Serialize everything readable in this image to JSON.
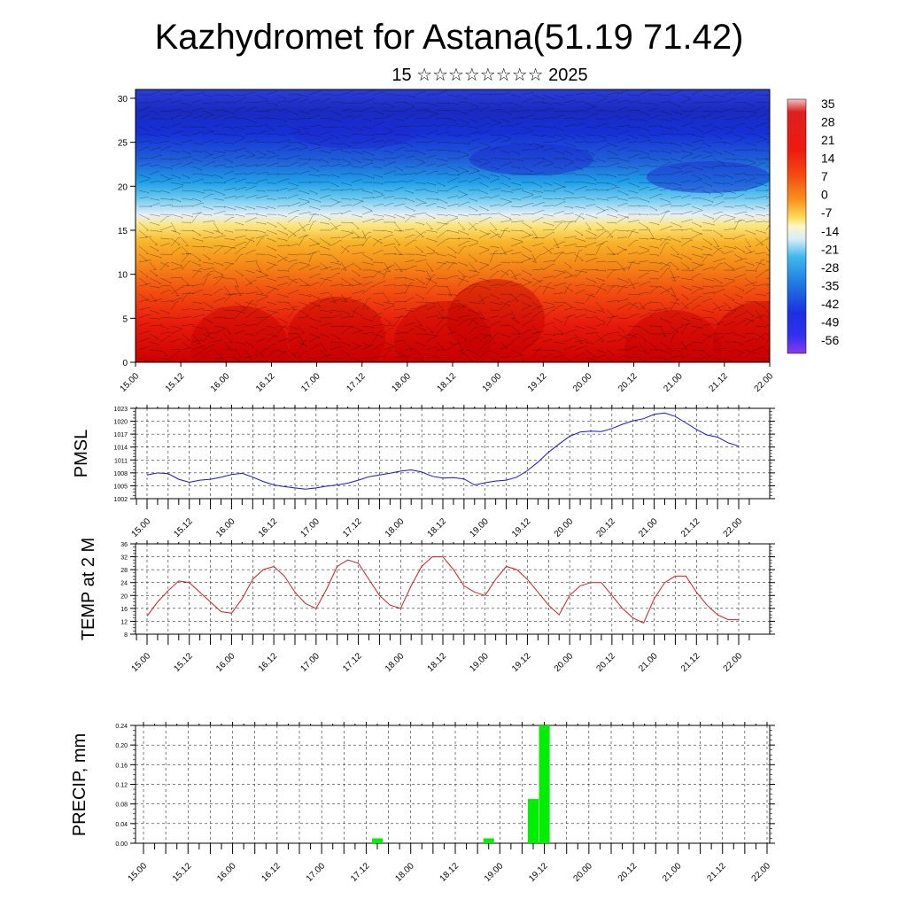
{
  "header": {
    "title": "Kazhydromet for Astana(51.19 71.42)",
    "subtitle": "15 ☆☆☆☆☆☆☆☆ 2025"
  },
  "x_ticks": [
    "15.00",
    "15.12",
    "16.00",
    "16.12",
    "17.00",
    "17.12",
    "18.00",
    "18.12",
    "19.00",
    "19.12",
    "20.00",
    "20.12",
    "21.00",
    "21.12",
    "22.00"
  ],
  "colors": {
    "pmsl_line": "#1515d6",
    "temp_line": "#d81b1b",
    "precip_bar": "#00ee00"
  },
  "chart_data": [
    {
      "type": "heatmap",
      "title": "Kazhydromet for Astana(51.19 71.42)",
      "subtitle": "15 ☆☆☆☆☆☆☆☆ 2025",
      "y_ticks": [
        "0",
        "5",
        "10",
        "15",
        "20",
        "25",
        "30"
      ],
      "ylim": [
        0,
        31
      ],
      "colorbar_labels": [
        "35",
        "28",
        "21",
        "14",
        "7",
        "0",
        "-7",
        "-14",
        "-21",
        "-28",
        "-35",
        "-42",
        "-49",
        "-56"
      ],
      "note_colormap": "temperature shaded from red (warm, near 0) through yellow (~15) to blue (cold, above 20), overlaid with wind barbs"
    },
    {
      "type": "line",
      "ylabel": "PMSL",
      "y_ticks": [
        "1002",
        "1005",
        "1008",
        "1011",
        "1014",
        "1017",
        "1020",
        "1023"
      ],
      "ylim": [
        1002,
        1023
      ],
      "x": [
        0,
        3,
        6,
        9,
        12,
        15,
        18,
        21,
        24,
        27,
        30,
        33,
        36,
        39,
        42,
        45,
        48,
        51,
        54,
        57,
        60,
        63,
        66,
        69,
        72,
        75,
        78,
        81,
        84,
        87,
        90,
        93,
        96,
        99,
        102,
        105,
        108,
        111,
        114,
        117,
        120,
        123,
        126,
        129,
        132,
        135,
        138,
        141,
        144,
        147,
        150,
        153,
        156,
        159,
        162,
        165,
        168
      ],
      "values": [
        1007.5,
        1008.0,
        1007.8,
        1006.5,
        1005.8,
        1006.3,
        1006.5,
        1007.0,
        1007.6,
        1007.9,
        1007.0,
        1006.0,
        1005.2,
        1004.8,
        1004.5,
        1004.2,
        1004.5,
        1004.9,
        1005.2,
        1005.6,
        1006.3,
        1007.1,
        1007.5,
        1007.9,
        1008.4,
        1008.7,
        1008.2,
        1007.2,
        1006.8,
        1006.9,
        1006.6,
        1005.2,
        1005.7,
        1006.1,
        1006.3,
        1007.0,
        1008.5,
        1010.5,
        1012.8,
        1014.7,
        1016.5,
        1017.5,
        1017.7,
        1017.6,
        1018.3,
        1019.3,
        1020.1,
        1020.6,
        1021.6,
        1021.9,
        1021.1,
        1019.6,
        1018.1,
        1016.8,
        1016.3,
        1015.0,
        1014.2
      ],
      "series": [
        {
          "values_ref": "values"
        }
      ]
    },
    {
      "type": "line",
      "ylabel": "TEMP at 2 M",
      "y_ticks": [
        "8",
        "12",
        "16",
        "20",
        "24",
        "28",
        "32",
        "36"
      ],
      "ylim": [
        8,
        36
      ],
      "x": [
        0,
        3,
        6,
        9,
        12,
        15,
        18,
        21,
        24,
        27,
        30,
        33,
        36,
        39,
        42,
        45,
        48,
        51,
        54,
        57,
        60,
        63,
        66,
        69,
        72,
        75,
        78,
        81,
        84,
        87,
        90,
        93,
        96,
        99,
        102,
        105,
        108,
        111,
        114,
        117,
        120,
        123,
        126,
        129,
        132,
        135,
        138,
        141,
        144,
        147,
        150,
        153,
        156,
        159,
        162,
        165,
        168
      ],
      "values": [
        13.6,
        18.0,
        21.5,
        24.5,
        24.0,
        21.0,
        18.0,
        15.0,
        14.5,
        19.0,
        25.0,
        28.0,
        29.0,
        26.0,
        21.0,
        17.5,
        16.0,
        22.0,
        29.0,
        31.0,
        30.0,
        25.0,
        20.0,
        17.0,
        16.0,
        23.0,
        29.0,
        32.0,
        32.0,
        28.0,
        23.0,
        21.0,
        20.0,
        25.0,
        29.0,
        28.0,
        25.0,
        21.0,
        17.0,
        14.0,
        20.0,
        23.0,
        24.0,
        24.0,
        20.0,
        16.0,
        13.0,
        11.5,
        19.0,
        24.0,
        26.0,
        26.0,
        21.0,
        17.0,
        14.0,
        12.5,
        12.5
      ]
    },
    {
      "type": "bar",
      "ylabel": "PRECIP, mm",
      "y_ticks": [
        "0.00",
        "0.04",
        "0.08",
        "0.12",
        "0.16",
        "0.20",
        "0.24"
      ],
      "ylim": [
        0,
        0.24
      ],
      "bars": [
        {
          "x": 63,
          "value": 0.01
        },
        {
          "x": 93,
          "value": 0.01
        },
        {
          "x": 105,
          "value": 0.09
        },
        {
          "x": 108,
          "value": 0.24
        }
      ]
    }
  ]
}
